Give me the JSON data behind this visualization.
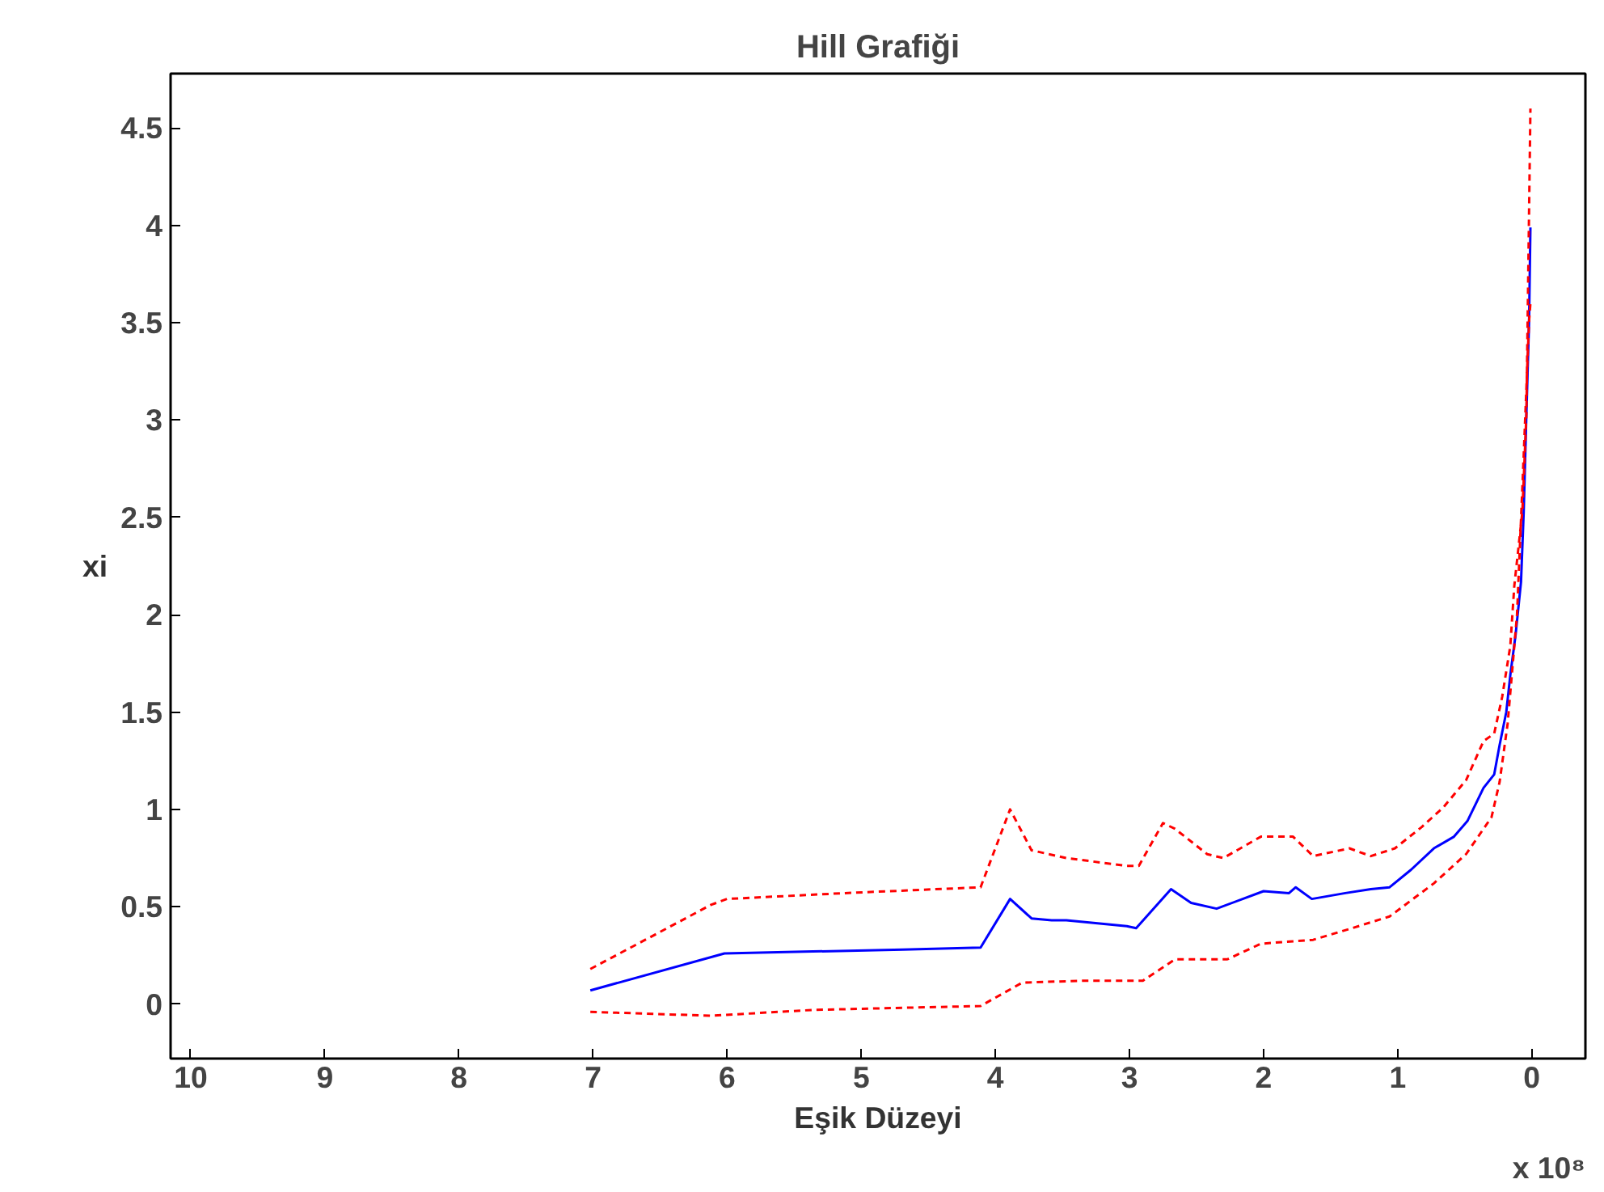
{
  "chart_data": {
    "type": "line",
    "title": "Hill Grafiği",
    "xlabel": "Eşik Düzeyi",
    "ylabel": "xi",
    "annotations": [
      "x 10⁸"
    ],
    "xlim": [
      10.15,
      -0.4
    ],
    "ylim": [
      -0.28,
      4.78
    ],
    "xticks": [
      10,
      9,
      8,
      7,
      6,
      5,
      4,
      3,
      2,
      1,
      0
    ],
    "yticks": [
      0,
      0.5,
      1,
      1.5,
      2,
      2.5,
      3,
      3.5,
      4,
      4.5
    ],
    "grid": false,
    "series": [
      {
        "color": "#0000ff",
        "line_style": "solid",
        "x": [
          7.02,
          6.02,
          5.36,
          4.69,
          4.11,
          3.89,
          3.73,
          3.58,
          3.47,
          3.02,
          2.95,
          2.69,
          2.54,
          2.35,
          2.0,
          1.81,
          1.76,
          1.64,
          1.39,
          1.2,
          1.06,
          0.9,
          0.73,
          0.58,
          0.48,
          0.36,
          0.28,
          0.24,
          0.19,
          0.16,
          0.12,
          0.08,
          0.06,
          0.04,
          0.02,
          0.01
        ],
        "values": [
          0.07,
          0.26,
          0.27,
          0.28,
          0.29,
          0.54,
          0.44,
          0.43,
          0.43,
          0.4,
          0.39,
          0.59,
          0.52,
          0.49,
          0.58,
          0.57,
          0.6,
          0.54,
          0.57,
          0.59,
          0.6,
          0.69,
          0.8,
          0.86,
          0.94,
          1.11,
          1.18,
          1.33,
          1.5,
          1.69,
          1.9,
          2.17,
          2.53,
          3.03,
          3.51,
          3.99
        ]
      },
      {
        "color": "#ff0000",
        "line_style": "dashed",
        "x": [
          7.02,
          6.12,
          6.0,
          5.12,
          4.11,
          3.89,
          3.73,
          3.47,
          3.02,
          2.93,
          2.75,
          2.66,
          2.42,
          2.3,
          2.02,
          1.78,
          1.63,
          1.36,
          1.2,
          1.02,
          0.82,
          0.66,
          0.49,
          0.36,
          0.28,
          0.22,
          0.16,
          0.13,
          0.07,
          0.04,
          0.01
        ],
        "values": [
          0.18,
          0.51,
          0.54,
          0.57,
          0.6,
          1.0,
          0.79,
          0.75,
          0.71,
          0.71,
          0.93,
          0.9,
          0.77,
          0.75,
          0.86,
          0.86,
          0.76,
          0.8,
          0.76,
          0.8,
          0.91,
          1.01,
          1.15,
          1.35,
          1.39,
          1.58,
          1.84,
          2.15,
          2.53,
          3.03,
          4.6
        ]
      },
      {
        "color": "#ff0000",
        "line_style": "dashed",
        "x": [
          7.02,
          6.12,
          5.36,
          4.11,
          3.8,
          3.35,
          2.9,
          2.66,
          2.27,
          2.02,
          1.63,
          1.34,
          1.06,
          0.73,
          0.49,
          0.3,
          0.24,
          0.18,
          0.11,
          0.06,
          0.02,
          0.01
        ],
        "values": [
          -0.04,
          -0.06,
          -0.03,
          -0.01,
          0.11,
          0.12,
          0.12,
          0.23,
          0.23,
          0.31,
          0.33,
          0.39,
          0.45,
          0.62,
          0.77,
          0.96,
          1.14,
          1.44,
          2.0,
          2.82,
          3.51,
          3.6
        ]
      }
    ]
  }
}
